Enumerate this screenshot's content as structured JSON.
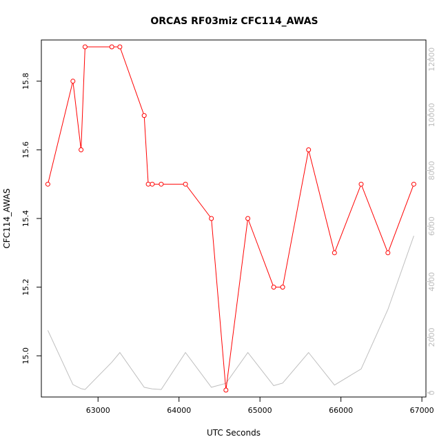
{
  "chart_data": {
    "type": "line",
    "title": "ORCAS RF03miz CFC114_AWAS",
    "xlabel": "UTC Seconds",
    "ylabel": "CFC114_AWAS",
    "xlim": [
      62300,
      67050
    ],
    "ylim": [
      14.88,
      15.92
    ],
    "y2lim": [
      -150,
      12700
    ],
    "x_ticks": [
      63000,
      64000,
      65000,
      66000,
      67000
    ],
    "y_ticks": [
      15.0,
      15.2,
      15.4,
      15.6,
      15.8
    ],
    "y2_ticks": [
      0,
      2000,
      4000,
      6000,
      8000,
      10000,
      12000
    ],
    "grid": false,
    "legend": "none",
    "series": [
      {
        "axis": "left",
        "color": "#ff0000",
        "marker": "open-circle",
        "x": [
          62380,
          62690,
          62790,
          62840,
          63170,
          63270,
          63570,
          63620,
          63670,
          63780,
          64080,
          64400,
          64580,
          64850,
          65170,
          65280,
          65600,
          65920,
          66250,
          66580,
          66900
        ],
        "y": [
          15.5,
          15.8,
          15.6,
          15.9,
          15.9,
          15.9,
          15.7,
          15.5,
          15.5,
          15.5,
          15.5,
          15.4,
          14.9,
          15.4,
          15.2,
          15.2,
          15.6,
          15.3,
          15.5,
          15.3,
          15.5
        ]
      },
      {
        "axis": "right",
        "color": "#bebebe",
        "marker": "none",
        "x": [
          62380,
          62690,
          62790,
          62840,
          63170,
          63270,
          63570,
          63620,
          63670,
          63780,
          64080,
          64400,
          64580,
          64850,
          65170,
          65280,
          65600,
          65920,
          66250,
          66580,
          66900
        ],
        "y": [
          2250,
          300,
          150,
          120,
          1100,
          1450,
          200,
          170,
          140,
          120,
          1450,
          200,
          340,
          1450,
          260,
          350,
          1450,
          280,
          860,
          3000,
          5650
        ]
      }
    ]
  }
}
